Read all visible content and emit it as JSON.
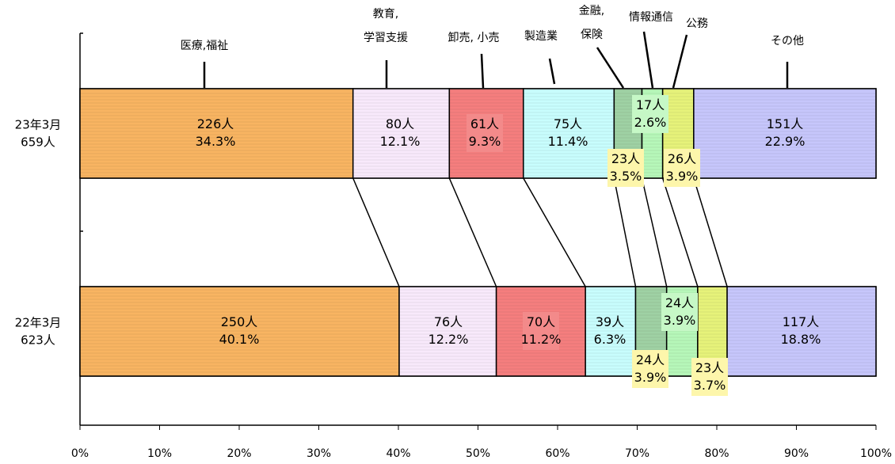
{
  "chart_data": {
    "type": "bar",
    "orientation": "horizontal",
    "stacked": "percent",
    "xlim": [
      0,
      100
    ],
    "x_ticks": [
      "0%",
      "10%",
      "20%",
      "30%",
      "40%",
      "50%",
      "60%",
      "70%",
      "80%",
      "90%",
      "100%"
    ],
    "categories": [
      {
        "label_lines": [
          "医療,福祉"
        ],
        "color": "#f8b462"
      },
      {
        "label_lines": [
          "教育,",
          "学習支援"
        ],
        "color": "#f8e9fb"
      },
      {
        "label_lines": [
          "卸売, 小売"
        ],
        "color": "#f57e7e"
      },
      {
        "label_lines": [
          "製造業"
        ],
        "color": "#c8fdfd"
      },
      {
        "label_lines": [
          "金融,",
          "保険"
        ],
        "color": "#9fd1a4"
      },
      {
        "label_lines": [
          "情報通信"
        ],
        "color": "#b6f7b9"
      },
      {
        "label_lines": [
          "公務"
        ],
        "color": "#e6f27a"
      },
      {
        "label_lines": [
          "その他"
        ],
        "color": "#c6c6fb"
      }
    ],
    "rows": [
      {
        "label_lines": [
          "23年3月",
          "659人"
        ],
        "values": [
          34.3,
          12.1,
          9.3,
          11.4,
          3.5,
          2.6,
          3.9,
          22.9
        ],
        "labels": [
          [
            "226人",
            "34.3%"
          ],
          [
            "80人",
            "12.1%"
          ],
          [
            "61人",
            "9.3%"
          ],
          [
            "75人",
            "11.4%"
          ],
          [
            "23人",
            "3.5%"
          ],
          [
            "17人",
            "2.6%"
          ],
          [
            "26人",
            "3.9%"
          ],
          [
            "151人",
            "22.9%"
          ]
        ]
      },
      {
        "label_lines": [
          "22年3月",
          "623人"
        ],
        "values": [
          40.1,
          12.2,
          11.2,
          6.3,
          3.9,
          3.9,
          3.7,
          18.8
        ],
        "labels": [
          [
            "250人",
            "40.1%"
          ],
          [
            "76人",
            "12.2%"
          ],
          [
            "70人",
            "11.2%"
          ],
          [
            "39人",
            "6.3%"
          ],
          [
            "24人",
            "3.9%"
          ],
          [
            "24人",
            "3.9%"
          ],
          [
            "23人",
            "3.7%"
          ],
          [
            "117人",
            "18.8%"
          ]
        ]
      }
    ]
  }
}
